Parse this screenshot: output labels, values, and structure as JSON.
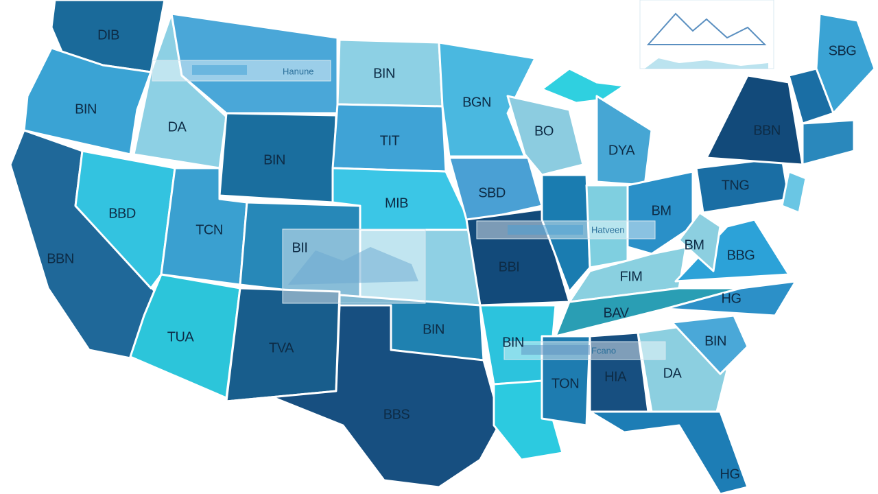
{
  "map": {
    "state_labels": [
      "DIB",
      "BIN",
      "DA",
      "BIN",
      "BGN",
      "TIT",
      "BIN",
      "BBD",
      "TCN",
      "MIB",
      "SBD",
      "BO",
      "DYA",
      "BBN",
      "SBG",
      "TNG",
      "BM",
      "BBN",
      "BII",
      "BBI",
      "FIM",
      "BM",
      "BBG",
      "HG",
      "BAV",
      "BIN",
      "TUA",
      "TVA",
      "BIN",
      "BIN",
      "TON",
      "HIA",
      "DA",
      "BBS",
      "HG"
    ],
    "overlay_labels": [
      "Hanune",
      "Hatveen",
      "Fcano"
    ]
  }
}
